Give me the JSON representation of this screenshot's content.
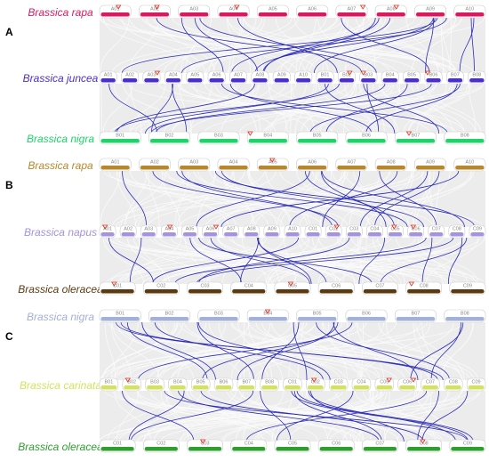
{
  "panels": [
    {
      "label": "A",
      "tracks": [
        {
          "species": "Brassica rapa",
          "color": "#d81b60",
          "chromosomes": [
            "A01",
            "A02",
            "A03",
            "A04",
            "A05",
            "A06",
            "A07",
            "A08",
            "A09",
            "A10"
          ]
        },
        {
          "species": "Brassica juncea",
          "color": "#4b2fc9",
          "chromosomes": [
            "A01",
            "A02",
            "A03",
            "A04",
            "A05",
            "A06",
            "A07",
            "A08",
            "A09",
            "A10",
            "B01",
            "B02",
            "B03",
            "B04",
            "B05",
            "B06",
            "B07",
            "B08"
          ]
        },
        {
          "species": "Brassica nigra",
          "color": "#1fd36a",
          "chromosomes": [
            "B01",
            "B02",
            "B03",
            "B04",
            "B05",
            "B06",
            "B07",
            "B08"
          ]
        }
      ]
    },
    {
      "label": "B",
      "tracks": [
        {
          "species": "Brassica rapa",
          "color": "#b8862b",
          "chromosomes": [
            "A01",
            "A02",
            "A03",
            "A04",
            "A05",
            "A06",
            "A07",
            "A08",
            "A09",
            "A10"
          ]
        },
        {
          "species": "Brassica napus",
          "color": "#a493e0",
          "chromosomes": [
            "A01",
            "A02",
            "A03",
            "A04",
            "A05",
            "A06",
            "A07",
            "A08",
            "A09",
            "A10",
            "C01",
            "C02",
            "C03",
            "C04",
            "C05",
            "C06",
            "C07",
            "C08",
            "C09"
          ]
        },
        {
          "species": "Brassica oleracea",
          "color": "#5c3a10",
          "chromosomes": [
            "C01",
            "C02",
            "C03",
            "C04",
            "C05",
            "C06",
            "C07",
            "C08",
            "C09"
          ]
        }
      ]
    },
    {
      "label": "C",
      "tracks": [
        {
          "species": "Brassica nigra",
          "color": "#a3b0d8",
          "chromosomes": [
            "B01",
            "B02",
            "B03",
            "B04",
            "B05",
            "B06",
            "B07",
            "B08"
          ]
        },
        {
          "species": "Brassica carinata",
          "color": "#d4e35c",
          "chromosomes": [
            "B01",
            "B02",
            "B03",
            "B04",
            "B05",
            "B06",
            "B07",
            "B08",
            "C01",
            "C02",
            "C03",
            "C04",
            "C05",
            "C06",
            "C07",
            "C08",
            "C09"
          ]
        },
        {
          "species": "Brassica oleracea",
          "color": "#2e9e2e",
          "chromosomes": [
            "C01",
            "C02",
            "C03",
            "C04",
            "C05",
            "C06",
            "C07",
            "C08",
            "C09"
          ]
        }
      ]
    }
  ]
}
